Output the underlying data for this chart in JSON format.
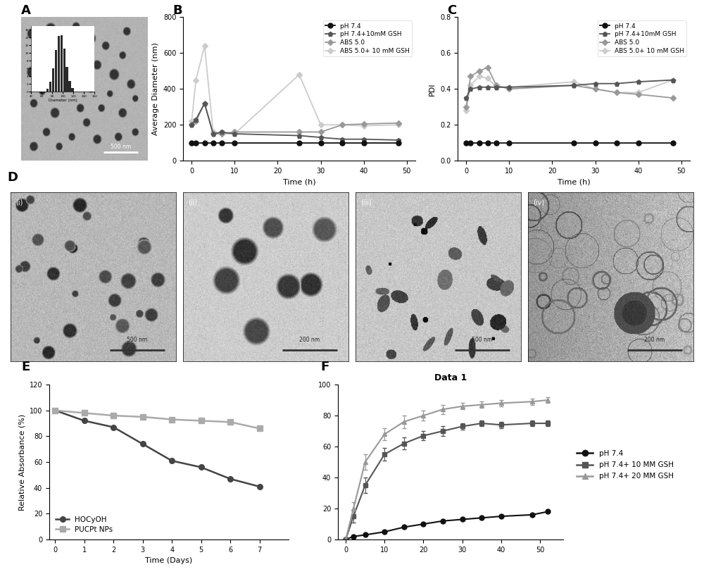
{
  "B_time": [
    0,
    1,
    3,
    5,
    7,
    10,
    25,
    30,
    35,
    40,
    48
  ],
  "B_pH74": [
    100,
    100,
    100,
    100,
    100,
    100,
    100,
    100,
    100,
    100,
    100
  ],
  "B_pH74_GSH": [
    200,
    230,
    320,
    150,
    160,
    150,
    140,
    130,
    120,
    120,
    115
  ],
  "B_ABS5": [
    200,
    220,
    320,
    150,
    150,
    160,
    160,
    160,
    200,
    205,
    210
  ],
  "B_ABS5_GSH": [
    220,
    450,
    640,
    160,
    150,
    150,
    480,
    200,
    200,
    195,
    200
  ],
  "C_time": [
    0,
    1,
    3,
    5,
    7,
    10,
    25,
    30,
    35,
    40,
    48
  ],
  "C_pH74": [
    0.1,
    0.1,
    0.1,
    0.1,
    0.1,
    0.1,
    0.1,
    0.1,
    0.1,
    0.1,
    0.1
  ],
  "C_pH74_GSH": [
    0.35,
    0.4,
    0.41,
    0.41,
    0.41,
    0.41,
    0.42,
    0.43,
    0.43,
    0.44,
    0.45
  ],
  "C_ABS5": [
    0.3,
    0.47,
    0.5,
    0.52,
    0.42,
    0.4,
    0.42,
    0.4,
    0.38,
    0.37,
    0.35
  ],
  "C_ABS5_GSH": [
    0.28,
    0.42,
    0.47,
    0.46,
    0.41,
    0.41,
    0.44,
    0.4,
    0.38,
    0.38,
    0.45
  ],
  "E_time": [
    0,
    1,
    2,
    3,
    4,
    5,
    6,
    7
  ],
  "E_HOCyOH": [
    100,
    92,
    87,
    74,
    61,
    56,
    47,
    41
  ],
  "E_PUCPtNPs": [
    100,
    98,
    96,
    95,
    93,
    92,
    91,
    86
  ],
  "F_time": [
    0,
    2,
    5,
    10,
    15,
    20,
    25,
    30,
    35,
    40,
    48,
    52
  ],
  "F_pH74": [
    0,
    2,
    3,
    5,
    8,
    10,
    12,
    13,
    14,
    15,
    16,
    18
  ],
  "F_pH74_10mM": [
    0,
    15,
    35,
    55,
    62,
    67,
    70,
    73,
    75,
    74,
    75,
    75
  ],
  "F_pH74_20mM": [
    0,
    20,
    50,
    68,
    76,
    80,
    84,
    86,
    87,
    88,
    89,
    90
  ],
  "F_eb_10": [
    1,
    4,
    5,
    4,
    4,
    3,
    3,
    2,
    2,
    2,
    2,
    2
  ],
  "F_eb_20": [
    1,
    4,
    5,
    4,
    4,
    3,
    3,
    2,
    2,
    2,
    2,
    2
  ]
}
